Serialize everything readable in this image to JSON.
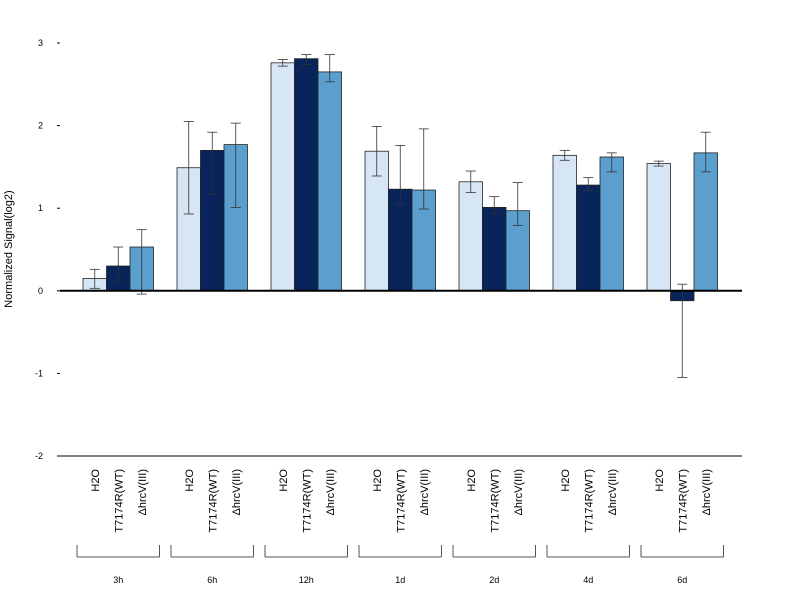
{
  "chart_data": {
    "type": "bar",
    "ylabel": "Normalized Signal(log2)",
    "ylim": [
      -2,
      3
    ],
    "yticks": [
      -2,
      -1,
      0,
      1,
      2,
      3
    ],
    "series_names": [
      "H2O",
      "T7174R(WT)",
      "ΔhrcV(III)"
    ],
    "series_colors": [
      "#d6e6f5",
      "#08245a",
      "#5b9fcf"
    ],
    "groups": [
      {
        "label": "3h",
        "bars": [
          {
            "value": 0.15,
            "err_low": 0.03,
            "err_high": 0.26
          },
          {
            "value": 0.3,
            "err_low": 0.13,
            "err_high": 0.53
          },
          {
            "value": 0.53,
            "err_low": -0.04,
            "err_high": 0.74
          }
        ]
      },
      {
        "label": "6h",
        "bars": [
          {
            "value": 1.49,
            "err_low": 0.93,
            "err_high": 2.05
          },
          {
            "value": 1.7,
            "err_low": 1.17,
            "err_high": 1.92
          },
          {
            "value": 1.77,
            "err_low": 1.01,
            "err_high": 2.03
          }
        ]
      },
      {
        "label": "12h",
        "bars": [
          {
            "value": 2.76,
            "err_low": 2.72,
            "err_high": 2.8
          },
          {
            "value": 2.81,
            "err_low": 2.74,
            "err_high": 2.86
          },
          {
            "value": 2.65,
            "err_low": 2.53,
            "err_high": 2.86
          }
        ]
      },
      {
        "label": "1d",
        "bars": [
          {
            "value": 1.69,
            "err_low": 1.39,
            "err_high": 1.99
          },
          {
            "value": 1.23,
            "err_low": 1.05,
            "err_high": 1.76
          },
          {
            "value": 1.22,
            "err_low": 0.99,
            "err_high": 1.96
          }
        ]
      },
      {
        "label": "2d",
        "bars": [
          {
            "value": 1.32,
            "err_low": 1.19,
            "err_high": 1.45
          },
          {
            "value": 1.01,
            "err_low": 0.93,
            "err_high": 1.14
          },
          {
            "value": 0.97,
            "err_low": 0.79,
            "err_high": 1.31
          }
        ]
      },
      {
        "label": "4d",
        "bars": [
          {
            "value": 1.64,
            "err_low": 1.58,
            "err_high": 1.7
          },
          {
            "value": 1.28,
            "err_low": 1.21,
            "err_high": 1.37
          },
          {
            "value": 1.62,
            "err_low": 1.44,
            "err_high": 1.67
          }
        ]
      },
      {
        "label": "6d",
        "bars": [
          {
            "value": 1.54,
            "err_low": 1.51,
            "err_high": 1.57
          },
          {
            "value": -0.12,
            "err_low": -1.05,
            "err_high": 0.08
          },
          {
            "value": 1.67,
            "err_low": 1.44,
            "err_high": 1.92
          }
        ]
      }
    ]
  }
}
